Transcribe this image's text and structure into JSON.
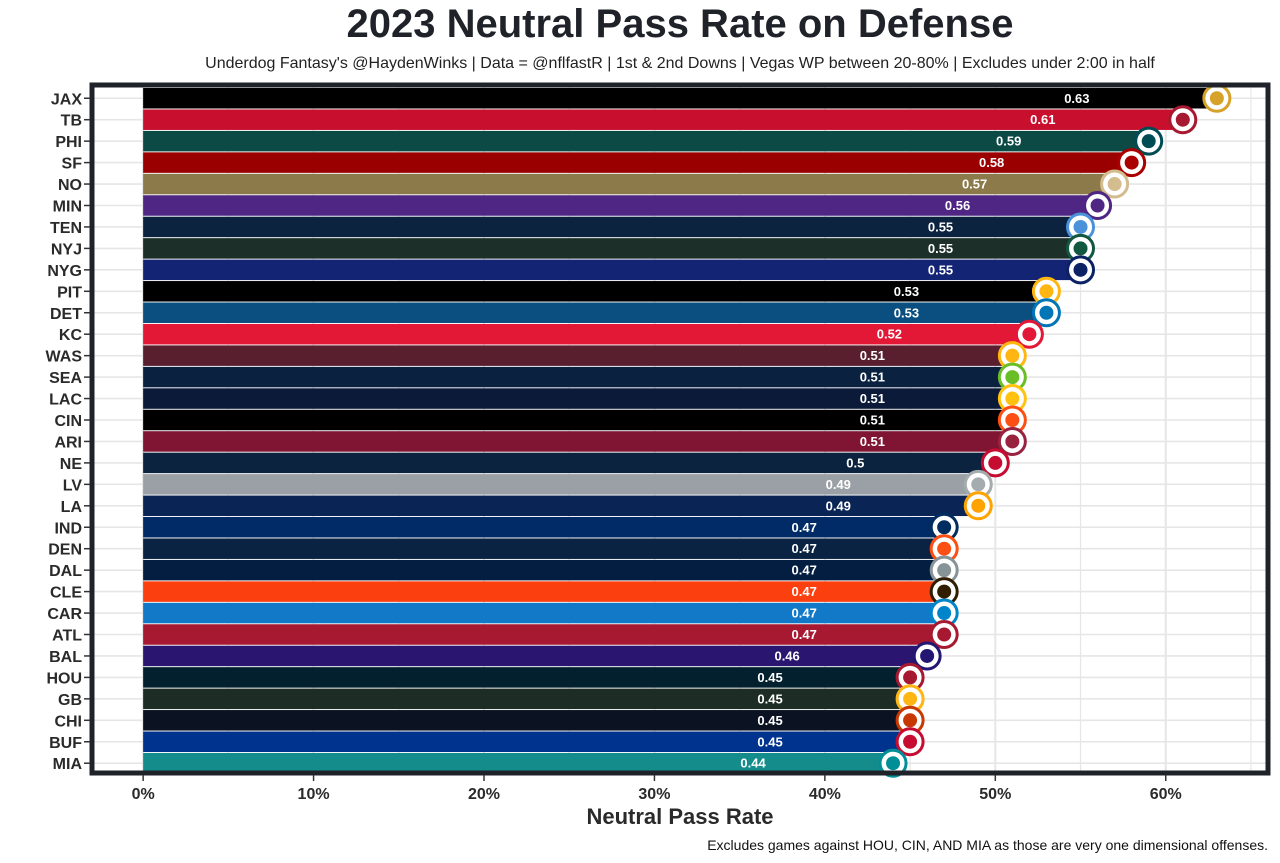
{
  "title": "2023 Neutral Pass Rate on Defense",
  "subtitle": "Underdog Fantasy's @HaydenWinks | Data = @nflfastR | 1st & 2nd Downs | Vegas WP between 20-80% | Excludes under 2:00 in half",
  "caption": "Excludes games against HOU, CIN, AND MIA as those are very one dimensional offenses.",
  "chart_data": {
    "type": "bar",
    "orientation": "horizontal",
    "title": "2023 Neutral Pass Rate on Defense",
    "xlabel": "Neutral Pass Rate",
    "ylabel": "",
    "xlim": [
      -0.03,
      0.66
    ],
    "x_ticks": [
      0,
      0.1,
      0.2,
      0.3,
      0.4,
      0.5,
      0.6
    ],
    "x_tick_labels": [
      "0%",
      "10%",
      "20%",
      "30%",
      "40%",
      "50%",
      "60%"
    ],
    "grid": true,
    "categories": [
      "JAX",
      "TB",
      "PHI",
      "SF",
      "NO",
      "MIN",
      "TEN",
      "NYJ",
      "NYG",
      "PIT",
      "DET",
      "KC",
      "WAS",
      "SEA",
      "LAC",
      "CIN",
      "ARI",
      "NE",
      "LV",
      "LA",
      "IND",
      "DEN",
      "DAL",
      "CLE",
      "CAR",
      "ATL",
      "BAL",
      "HOU",
      "GB",
      "CHI",
      "BUF",
      "MIA"
    ],
    "values": [
      0.63,
      0.61,
      0.59,
      0.58,
      0.57,
      0.56,
      0.55,
      0.55,
      0.55,
      0.53,
      0.53,
      0.52,
      0.51,
      0.51,
      0.51,
      0.51,
      0.51,
      0.5,
      0.49,
      0.49,
      0.47,
      0.47,
      0.47,
      0.47,
      0.47,
      0.47,
      0.46,
      0.45,
      0.45,
      0.45,
      0.45,
      0.44
    ],
    "value_labels": [
      "0.63",
      "0.61",
      "0.59",
      "0.58",
      "0.57",
      "0.56",
      "0.55",
      "0.55",
      "0.55",
      "0.53",
      "0.53",
      "0.52",
      "0.51",
      "0.51",
      "0.51",
      "0.51",
      "0.51",
      "0.5",
      "0.49",
      "0.49",
      "0.47",
      "0.47",
      "0.47",
      "0.47",
      "0.47",
      "0.47",
      "0.46",
      "0.45",
      "0.45",
      "0.45",
      "0.45",
      "0.44"
    ],
    "colors": [
      "#000000",
      "#c8102e",
      "#0b4a45",
      "#9b0000",
      "#8d7a4b",
      "#4f2683",
      "#0c2340",
      "#1c2f28",
      "#142474",
      "#000000",
      "#0a4f80",
      "#e31837",
      "#5a1f2e",
      "#0a2240",
      "#0c1a3a",
      "#000000",
      "#7f1533",
      "#0c2340",
      "#9aa0a6",
      "#0a2456",
      "#002b66",
      "#0a2343",
      "#041e42",
      "#fb3f0e",
      "#1279c9",
      "#a71930",
      "#2a1670",
      "#03202f",
      "#1d2d26",
      "#0b1221",
      "#00338d",
      "#148c8c"
    ],
    "logo_colors": [
      "#d7a22a",
      "#a71930",
      "#004c54",
      "#aa0000",
      "#d3bc8d",
      "#4f2683",
      "#4b92db",
      "#125740",
      "#0b2265",
      "#ffb612",
      "#0076b6",
      "#e31837",
      "#ffb612",
      "#69be28",
      "#ffc20e",
      "#fb4f14",
      "#97233f",
      "#c60c30",
      "#a5acaf",
      "#ffa300",
      "#002c5f",
      "#fb4f14",
      "#869397",
      "#311d00",
      "#0085ca",
      "#a71930",
      "#241773",
      "#a71930",
      "#ffb612",
      "#c83803",
      "#c60c30",
      "#008e97"
    ]
  }
}
